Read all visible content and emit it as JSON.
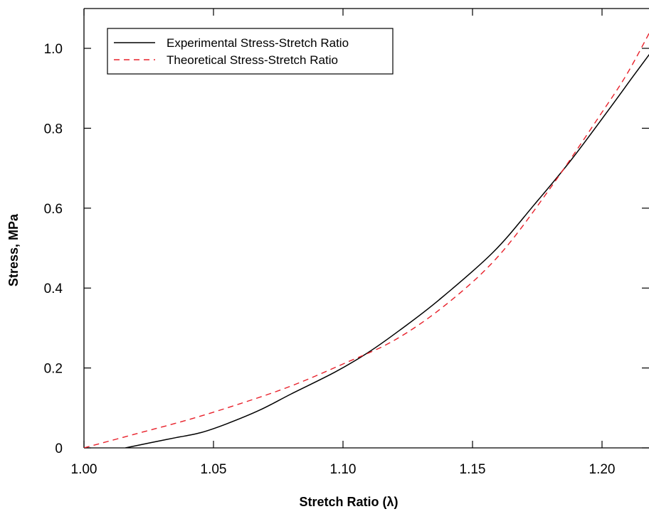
{
  "chart_data": {
    "type": "line",
    "title": "",
    "xlabel": "Stretch Ratio (λ)",
    "ylabel": "Stress, MPa",
    "xlim": [
      1.0,
      1.22
    ],
    "ylim": [
      0,
      1.1
    ],
    "xticks": [
      {
        "value": 1.0,
        "label": "1.00"
      },
      {
        "value": 1.05,
        "label": "1.05"
      },
      {
        "value": 1.1,
        "label": "1.10"
      },
      {
        "value": 1.15,
        "label": "1.15"
      },
      {
        "value": 1.2,
        "label": "1.20"
      }
    ],
    "yticks": [
      {
        "value": 0,
        "label": "0"
      },
      {
        "value": 0.2,
        "label": "0.2"
      },
      {
        "value": 0.4,
        "label": "0.4"
      },
      {
        "value": 0.6,
        "label": "0.6"
      },
      {
        "value": 0.8,
        "label": "0.8"
      },
      {
        "value": 1.0,
        "label": "1.0"
      }
    ],
    "grid": false,
    "legend_position": "top-left",
    "series": [
      {
        "name": "Experimental Stress-Stretch Ratio",
        "color": "#000000",
        "style": "solid",
        "x": [
          1.016,
          1.025,
          1.035,
          1.045,
          1.055,
          1.068,
          1.08,
          1.097,
          1.11,
          1.122,
          1.137,
          1.158,
          1.174,
          1.188,
          1.203,
          1.212,
          1.22
        ],
        "y": [
          0.0,
          0.012,
          0.025,
          0.038,
          0.06,
          0.095,
          0.135,
          0.19,
          0.24,
          0.295,
          0.37,
          0.49,
          0.61,
          0.72,
          0.85,
          0.93,
          1.0
        ]
      },
      {
        "name": "Theoretical Stress-Stretch Ratio",
        "color": "#e8202a",
        "style": "dashed",
        "x": [
          1.0,
          1.02,
          1.04,
          1.06,
          1.08,
          1.1,
          1.12,
          1.14,
          1.16,
          1.18,
          1.2,
          1.21,
          1.22
        ],
        "y": [
          0.0,
          0.035,
          0.07,
          0.11,
          0.155,
          0.21,
          0.27,
          0.36,
          0.48,
          0.65,
          0.84,
          0.94,
          1.06
        ]
      }
    ]
  }
}
